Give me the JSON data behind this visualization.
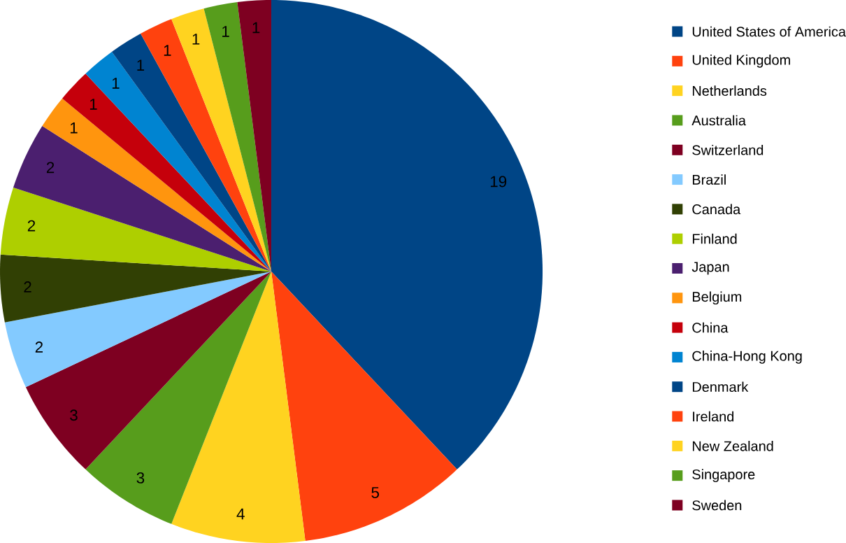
{
  "chart_data": {
    "type": "pie",
    "categories": [
      "United States of America",
      "United Kingdom",
      "Netherlands",
      "Australia",
      "Switzerland",
      "Brazil",
      "Canada",
      "Finland",
      "Japan",
      "Belgium",
      "China",
      "China-Hong Kong",
      "Denmark",
      "Ireland",
      "New Zealand",
      "Singapore",
      "Sweden"
    ],
    "values": [
      19,
      5,
      4,
      3,
      3,
      2,
      2,
      2,
      2,
      1,
      1,
      1,
      1,
      1,
      1,
      1,
      1
    ],
    "colors": [
      "#004586",
      "#ff420e",
      "#ffd320",
      "#579d1c",
      "#7e0021",
      "#83caff",
      "#314004",
      "#aecf00",
      "#4b1f6f",
      "#ff950e",
      "#c5000b",
      "#0084d1",
      "#004586",
      "#ff420e",
      "#ffd320",
      "#579d1c",
      "#7e0021"
    ],
    "data_labels": true,
    "legend": "right"
  }
}
